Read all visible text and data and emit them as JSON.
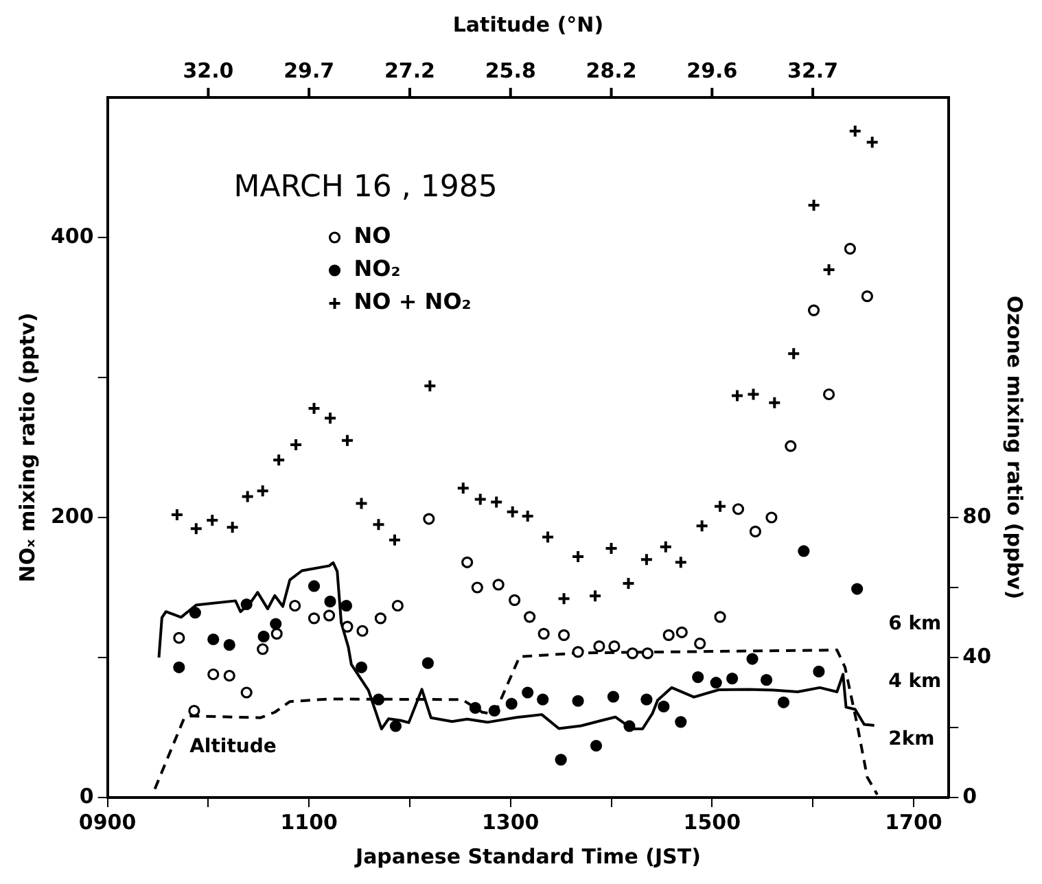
{
  "chart_data": {
    "type": "scatter",
    "title": "MARCH 16 , 1985",
    "xlabel": "Japanese Standard Time (JST)",
    "ylabel": "NOₓ mixing ratio (pptv)",
    "y2label": "Ozone mixing ratio (ppbv)",
    "x2label": "Latitude (°N)",
    "xlim": [
      900,
      1735
    ],
    "xticks": [
      {
        "value": 900,
        "label": "0900"
      },
      {
        "value": 1000,
        "label": null
      },
      1100,
      {
        "value": 1200,
        "label": null
      },
      1300,
      {
        "value": 1400,
        "label": null
      },
      1500,
      {
        "value": 1600,
        "label": null
      },
      1700
    ],
    "annotations": [
      "32.0",
      "29.7",
      "27.2",
      "25.8",
      "28.2",
      "29.6",
      "32.7"
    ],
    "ylim": [
      0,
      500
    ],
    "yticks": [
      0,
      {
        "value": 100,
        "label": null
      },
      200,
      {
        "value": 300,
        "label": null
      },
      400
    ],
    "y2lim": [
      0,
      200
    ],
    "y2ticks": [
      0,
      {
        "value": 20,
        "label": null
      },
      40,
      {
        "value": 60,
        "label": null
      },
      80
    ],
    "y3lim": [
      0,
      24.3
    ],
    "y3ticks": [
      {
        "value": 2,
        "label": "2km"
      },
      {
        "value": 4,
        "label": "4 km"
      },
      {
        "value": 6,
        "label": "6 km"
      }
    ],
    "grid": false,
    "legend": "top left",
    "series": [
      {
        "name": "NO",
        "type": "scatter",
        "marker": "circle",
        "color": "#000000",
        "x": [
          971,
          986,
          1005,
          1021,
          1038,
          1054,
          1068,
          1086,
          1105,
          1120,
          1138,
          1153,
          1171,
          1188,
          1219,
          1257,
          1267,
          1288,
          1304,
          1319,
          1333,
          1353,
          1367,
          1388,
          1403,
          1421,
          1436,
          1457,
          1470,
          1488,
          1508,
          1526,
          1543,
          1559,
          1578,
          1601,
          1616,
          1637,
          1654
        ],
        "values": [
          114,
          62,
          88,
          87,
          75,
          106,
          117,
          137,
          128,
          130,
          122,
          119,
          128,
          137,
          199,
          168,
          150,
          152,
          141,
          129,
          117,
          116,
          104,
          108,
          108,
          103,
          103,
          116,
          118,
          110,
          129,
          206,
          190,
          200,
          251,
          348,
          288,
          392,
          358
        ]
      },
      {
        "name": "NO₂",
        "type": "scatter",
        "marker": "circle",
        "color": "#000000",
        "x": [
          971,
          987,
          1005,
          1021,
          1038,
          1055,
          1067,
          1105,
          1121,
          1137,
          1152,
          1169,
          1186,
          1218,
          1265,
          1284,
          1301,
          1317,
          1332,
          1350,
          1367,
          1385,
          1402,
          1418,
          1435,
          1452,
          1469,
          1486,
          1504,
          1520,
          1540,
          1554,
          1571,
          1591,
          1606,
          1644
        ],
        "values": [
          93,
          132,
          113,
          109,
          138,
          115,
          124,
          151,
          140,
          137,
          93,
          70,
          51,
          96,
          64,
          62,
          67,
          75,
          70,
          27,
          69,
          37,
          72,
          51,
          70,
          65,
          54,
          86,
          82,
          85,
          99,
          84,
          68,
          176,
          90,
          149
        ]
      },
      {
        "name": "NO + NO₂",
        "type": "scatter",
        "marker": "cross",
        "color": "#000000",
        "x": [
          969,
          988,
          1004,
          1024,
          1039,
          1054,
          1070,
          1087,
          1105,
          1121,
          1138,
          1152,
          1169,
          1185,
          1220,
          1253,
          1270,
          1286,
          1302,
          1317,
          1337,
          1353,
          1367,
          1384,
          1400,
          1417,
          1435,
          1454,
          1469,
          1490,
          1508,
          1525,
          1541,
          1562,
          1581,
          1601,
          1616,
          1642,
          1659
        ],
        "values": [
          202,
          192,
          198,
          193,
          215,
          219,
          241,
          252,
          278,
          271,
          255,
          210,
          195,
          184,
          294,
          221,
          213,
          211,
          204,
          201,
          186,
          142,
          172,
          144,
          178,
          153,
          170,
          179,
          168,
          194,
          208,
          287,
          288,
          282,
          317,
          423,
          377,
          476,
          468
        ]
      },
      {
        "type": "line",
        "axis": "y2",
        "marker": "none",
        "line_style": "solid",
        "color": "#000000",
        "x": [
          951,
          954,
          958,
          973,
          988,
          1027,
          1032,
          1042,
          1049,
          1059,
          1066,
          1074,
          1081,
          1093,
          1120,
          1124,
          1128,
          1132,
          1139,
          1142,
          1159,
          1172,
          1179,
          1191,
          1199,
          1212,
          1221,
          1242,
          1257,
          1277,
          1306,
          1331,
          1348,
          1370,
          1389,
          1404,
          1421,
          1431,
          1441,
          1446,
          1460,
          1482,
          1507,
          1536,
          1561,
          1585,
          1607,
          1624,
          1630,
          1633,
          1642,
          1651,
          1661
        ],
        "values": [
          40.0,
          51.4,
          53.1,
          51.5,
          55.0,
          56.2,
          53.1,
          55.7,
          58.6,
          53.9,
          57.7,
          54.6,
          62.2,
          64.8,
          66.2,
          67.1,
          64.6,
          49.9,
          43.0,
          38.0,
          30.6,
          19.6,
          22.5,
          22.0,
          21.4,
          30.9,
          22.8,
          21.7,
          22.4,
          21.5,
          22.9,
          23.7,
          19.7,
          20.5,
          21.9,
          23.0,
          19.6,
          19.6,
          24.1,
          27.8,
          31.4,
          28.7,
          30.8,
          30.9,
          30.7,
          30.2,
          31.4,
          30.2,
          35.2,
          25.8,
          25.2,
          20.9,
          20.6
        ]
      },
      {
        "name": "Altitude",
        "type": "line",
        "axis": "y3",
        "marker": "none",
        "line_style": "dashed",
        "color": "#000000",
        "x": [
          947,
          976,
          983,
          1052,
          1066,
          1081,
          1120,
          1252,
          1272,
          1284,
          1309,
          1370,
          1624,
          1632,
          1644,
          1654,
          1664
        ],
        "values": [
          0.3,
          2.75,
          2.83,
          2.77,
          2.96,
          3.33,
          3.42,
          3.4,
          2.96,
          2.89,
          4.89,
          5.02,
          5.12,
          4.52,
          2.54,
          0.71,
          0.1
        ]
      }
    ]
  }
}
